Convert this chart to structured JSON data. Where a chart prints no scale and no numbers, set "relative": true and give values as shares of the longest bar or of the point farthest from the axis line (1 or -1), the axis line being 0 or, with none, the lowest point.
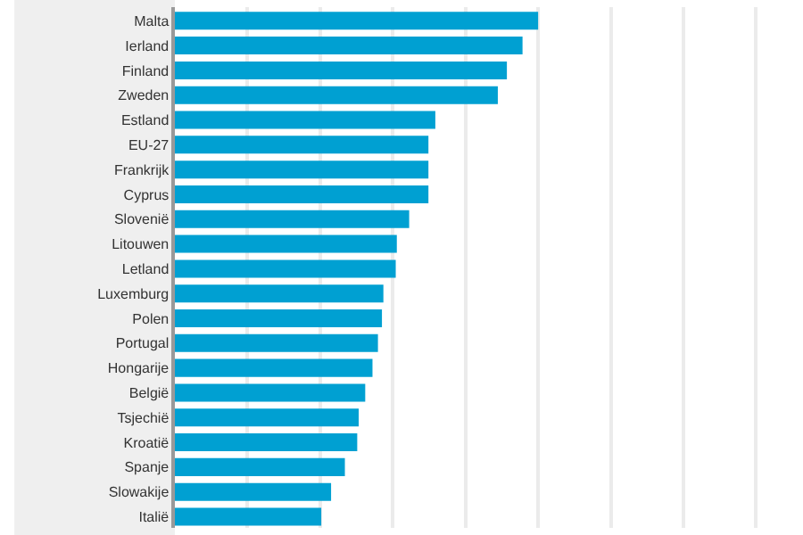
{
  "chart_data": {
    "type": "bar",
    "orientation": "horizontal",
    "relative": true,
    "grid": "x",
    "categories": [
      "Malta",
      "Ierland",
      "Finland",
      "Zweden",
      "Estland",
      "EU-27",
      "Frankrijk",
      "Cyprus",
      "Slovenië",
      "Litouwen",
      "Letland",
      "Luxemburg",
      "Polen",
      "Portugal",
      "Hongarije",
      "België",
      "Tsjechië",
      "Kroatië",
      "Spanje",
      "Slowakije",
      "Italië"
    ],
    "series": [
      {
        "color": "#00a0d2",
        "values": [
          1,
          0.957,
          0.914,
          0.889,
          0.717,
          0.698,
          0.698,
          0.698,
          0.645,
          0.611,
          0.608,
          0.574,
          0.57,
          0.559,
          0.544,
          0.524,
          0.506,
          0.502,
          0.468,
          0.43,
          0.403
        ]
      }
    ]
  }
}
